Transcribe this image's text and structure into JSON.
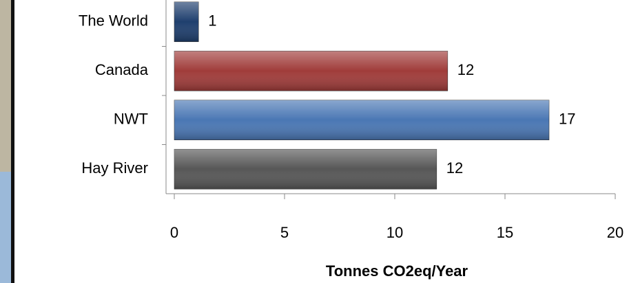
{
  "chart_data": {
    "type": "hbar",
    "categories": [
      "The World",
      "Canada",
      "NWT",
      "Hay River"
    ],
    "values": [
      1.1,
      12.4,
      17,
      11.9
    ],
    "value_labels": [
      "1",
      "12",
      "17",
      "12"
    ],
    "colors": [
      "#1f3f6e",
      "#a03c3a",
      "#4a77b4",
      "#575757"
    ],
    "xlim": [
      0,
      20
    ],
    "xticks": [
      0,
      5,
      10,
      15,
      20
    ],
    "x_label": "Tonnes CO2eq/Year"
  }
}
